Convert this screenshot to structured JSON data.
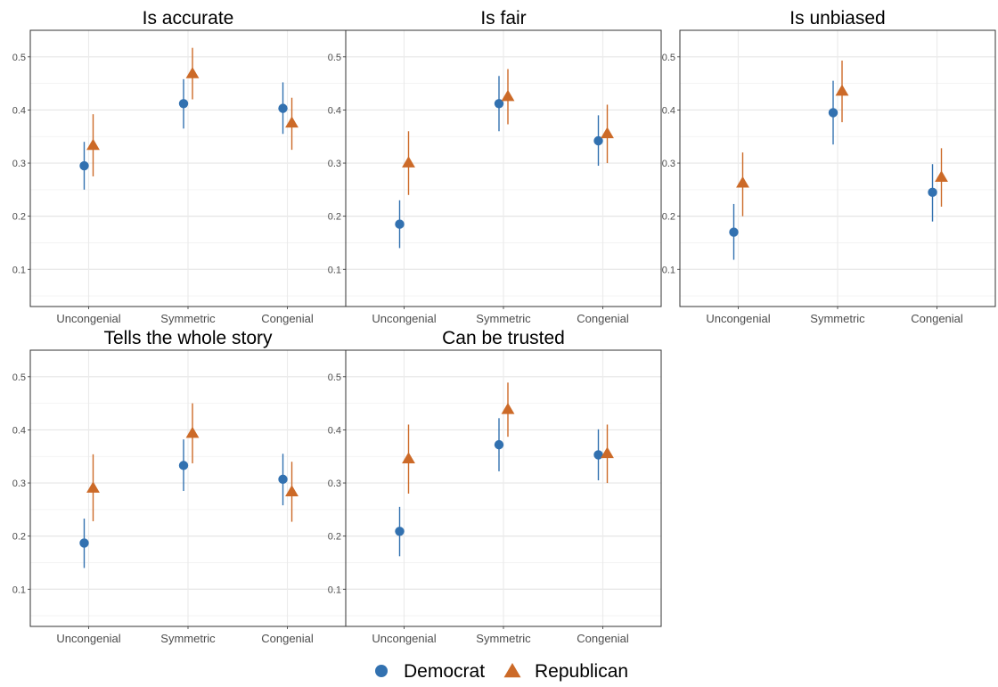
{
  "chart_data": {
    "type": "scatter",
    "y_ticks": [
      0.1,
      0.2,
      0.3,
      0.4,
      0.5
    ],
    "ylim": [
      0.03,
      0.55
    ],
    "categories": [
      "Uncongenial",
      "Symmetric",
      "Congenial"
    ],
    "series_styles": [
      {
        "name": "Democrat",
        "color": "#3271b0",
        "marker": "circle"
      },
      {
        "name": "Republican",
        "color": "#cc6a28",
        "marker": "triangle"
      }
    ],
    "panels": [
      {
        "title": "Is accurate",
        "series": [
          {
            "name": "Democrat",
            "values": [
              0.295,
              0.412,
              0.403
            ],
            "lower": [
              0.25,
              0.365,
              0.355
            ],
            "upper": [
              0.34,
              0.458,
              0.452
            ]
          },
          {
            "name": "Republican",
            "values": [
              0.333,
              0.468,
              0.375
            ],
            "lower": [
              0.275,
              0.42,
              0.325
            ],
            "upper": [
              0.392,
              0.517,
              0.423
            ]
          }
        ]
      },
      {
        "title": "Is fair",
        "series": [
          {
            "name": "Democrat",
            "values": [
              0.185,
              0.412,
              0.342
            ],
            "lower": [
              0.14,
              0.36,
              0.295
            ],
            "upper": [
              0.23,
              0.464,
              0.39
            ]
          },
          {
            "name": "Republican",
            "values": [
              0.3,
              0.425,
              0.355
            ],
            "lower": [
              0.24,
              0.373,
              0.3
            ],
            "upper": [
              0.36,
              0.477,
              0.41
            ]
          }
        ]
      },
      {
        "title": "Is unbiased",
        "series": [
          {
            "name": "Democrat",
            "values": [
              0.17,
              0.395,
              0.245
            ],
            "lower": [
              0.118,
              0.335,
              0.19
            ],
            "upper": [
              0.223,
              0.455,
              0.298
            ]
          },
          {
            "name": "Republican",
            "values": [
              0.262,
              0.435,
              0.273
            ],
            "lower": [
              0.2,
              0.377,
              0.218
            ],
            "upper": [
              0.32,
              0.493,
              0.328
            ]
          }
        ]
      },
      {
        "title": "Tells the whole story",
        "series": [
          {
            "name": "Democrat",
            "values": [
              0.187,
              0.333,
              0.307
            ],
            "lower": [
              0.14,
              0.285,
              0.258
            ],
            "upper": [
              0.233,
              0.382,
              0.355
            ]
          },
          {
            "name": "Republican",
            "values": [
              0.29,
              0.393,
              0.283
            ],
            "lower": [
              0.228,
              0.337,
              0.227
            ],
            "upper": [
              0.354,
              0.45,
              0.34
            ]
          }
        ]
      },
      {
        "title": "Can be trusted",
        "series": [
          {
            "name": "Democrat",
            "values": [
              0.209,
              0.372,
              0.353
            ],
            "lower": [
              0.162,
              0.322,
              0.305
            ],
            "upper": [
              0.255,
              0.422,
              0.401
            ]
          },
          {
            "name": "Republican",
            "values": [
              0.345,
              0.438,
              0.355
            ],
            "lower": [
              0.28,
              0.387,
              0.3
            ],
            "upper": [
              0.41,
              0.489,
              0.41
            ]
          }
        ]
      }
    ],
    "grid": true,
    "legend": {
      "position": "bottom",
      "entries": [
        "Democrat",
        "Republican"
      ]
    }
  }
}
